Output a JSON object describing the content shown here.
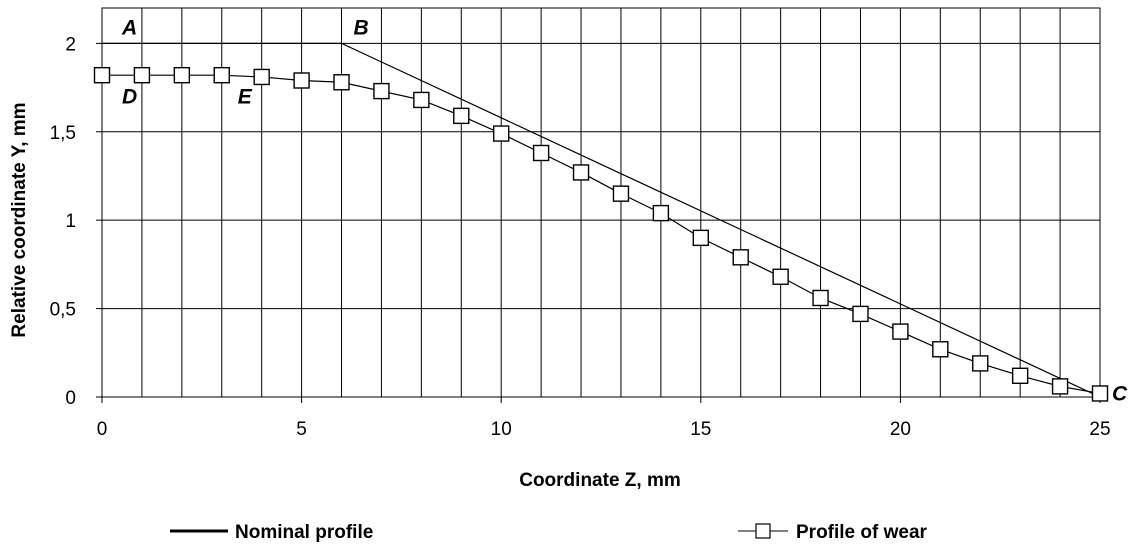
{
  "chart_data": {
    "type": "line",
    "xlabel": "Coordinate Z, mm",
    "ylabel": "Relative coordinate Y, mm",
    "xlim": [
      0,
      25
    ],
    "ylim": [
      0,
      2.2
    ],
    "x_ticks": [
      0,
      5,
      10,
      15,
      20,
      25
    ],
    "x_tick_labels": [
      "0",
      "5",
      "10",
      "15",
      "20",
      "25"
    ],
    "y_ticks": [
      0,
      0.5,
      1,
      1.5,
      2
    ],
    "y_tick_labels": [
      "0",
      "0,5",
      "1",
      "1,5",
      "2"
    ],
    "grid": true,
    "legend_position": "bottom",
    "series": [
      {
        "name": "Nominal profile",
        "marker": "none",
        "color": "#000000",
        "x": [
          0,
          6,
          25
        ],
        "y": [
          2.0,
          2.0,
          0.0
        ]
      },
      {
        "name": "Profile of wear",
        "marker": "square",
        "color": "#000000",
        "x": [
          0,
          1,
          2,
          3,
          4,
          5,
          6,
          7,
          8,
          9,
          10,
          11,
          12,
          13,
          14,
          15,
          16,
          17,
          18,
          19,
          20,
          21,
          22,
          23,
          24,
          25
        ],
        "y": [
          1.82,
          1.82,
          1.82,
          1.82,
          1.81,
          1.79,
          1.78,
          1.73,
          1.68,
          1.59,
          1.49,
          1.38,
          1.27,
          1.15,
          1.04,
          0.9,
          0.79,
          0.68,
          0.56,
          0.47,
          0.37,
          0.27,
          0.19,
          0.12,
          0.06,
          0.02
        ]
      }
    ],
    "annotations": [
      {
        "text": "A",
        "x": 0.5,
        "y": 2.09
      },
      {
        "text": "B",
        "x": 6.3,
        "y": 2.09
      },
      {
        "text": "C",
        "x": 25.3,
        "y": 0.02
      },
      {
        "text": "D",
        "x": 0.5,
        "y": 1.7
      },
      {
        "text": "E",
        "x": 3.4,
        "y": 1.7
      }
    ]
  }
}
